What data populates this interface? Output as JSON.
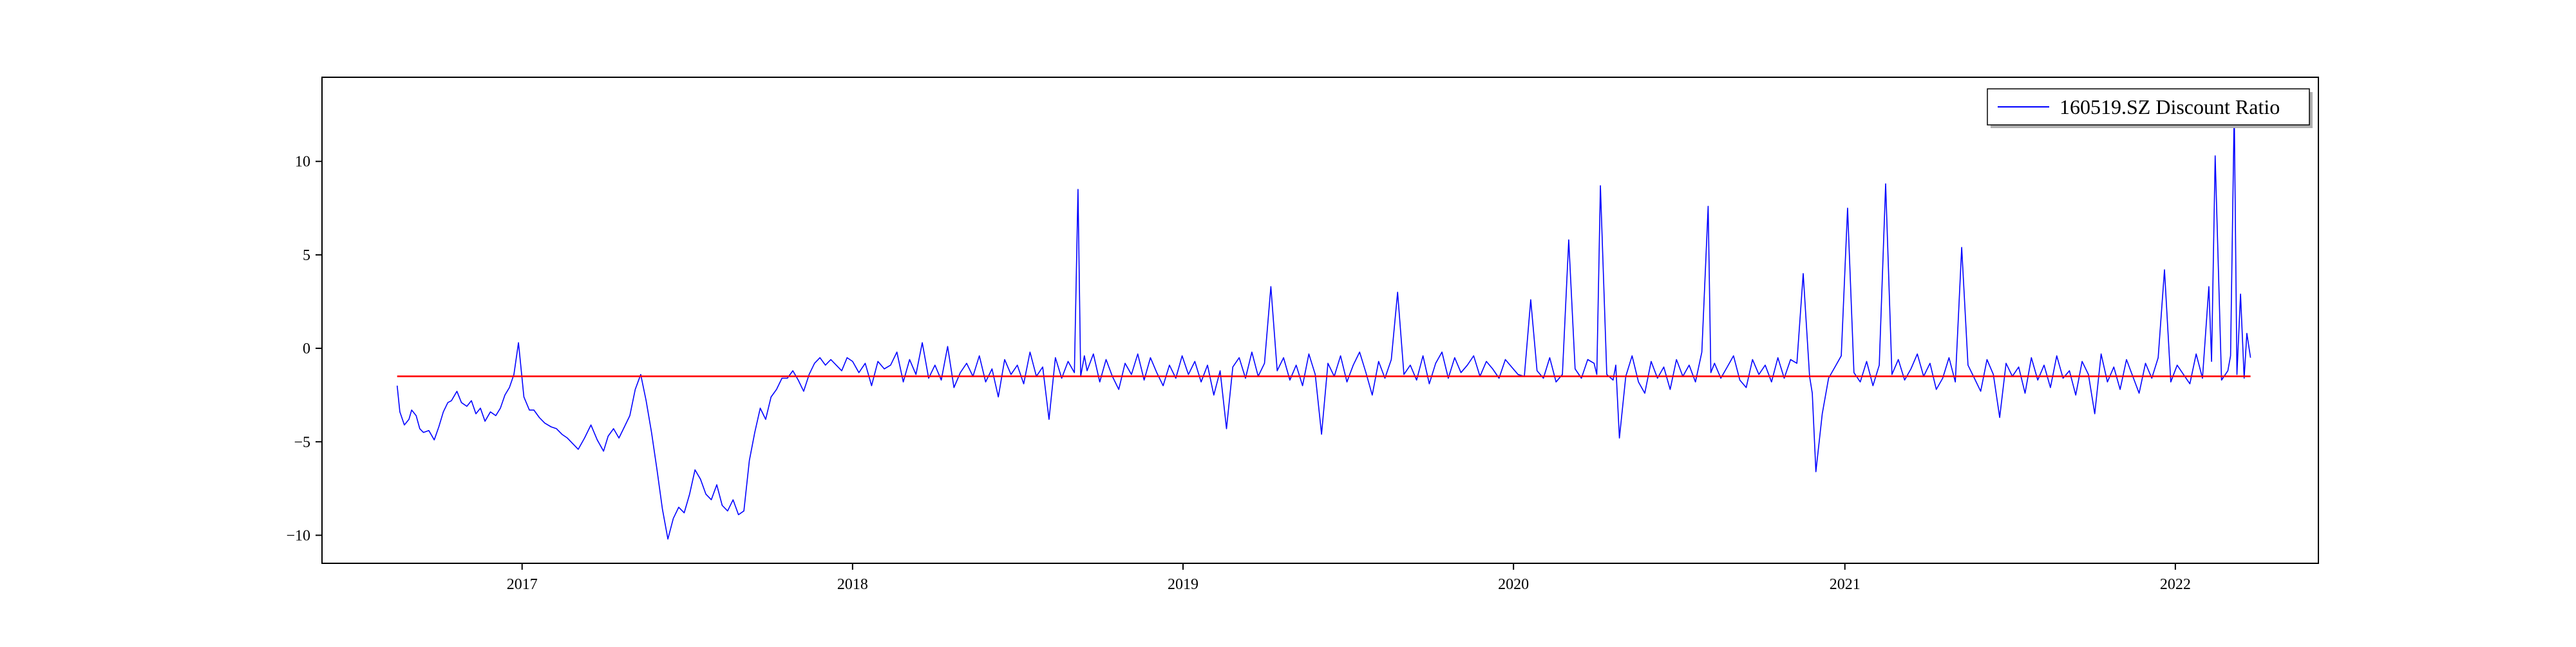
{
  "chart_data": {
    "type": "line",
    "title": "",
    "xlabel": "",
    "ylabel": "",
    "x_range": [
      "2016-05-25",
      "2022-06-08"
    ],
    "ylim": [
      -11.5,
      14.5
    ],
    "x_ticks": [
      {
        "date": "2017-01-01",
        "label": "2017"
      },
      {
        "date": "2018-01-01",
        "label": "2018"
      },
      {
        "date": "2019-01-01",
        "label": "2019"
      },
      {
        "date": "2020-01-01",
        "label": "2020"
      },
      {
        "date": "2021-01-01",
        "label": "2021"
      },
      {
        "date": "2022-01-01",
        "label": "2022"
      }
    ],
    "y_ticks": [
      {
        "value": -10,
        "label": "−10"
      },
      {
        "value": -5,
        "label": "−5"
      },
      {
        "value": 0,
        "label": "0"
      },
      {
        "value": 5,
        "label": "5"
      },
      {
        "value": 10,
        "label": "10"
      }
    ],
    "grid": false,
    "legend": {
      "position": "top-right",
      "entries": [
        "160519.SZ Discount Ratio"
      ]
    },
    "series": [
      {
        "name": "160519.SZ Discount Ratio",
        "color": "#0000ff",
        "x": [
          "2016-08-16",
          "2016-08-19",
          "2016-08-24",
          "2016-08-29",
          "2016-09-01",
          "2016-09-06",
          "2016-09-10",
          "2016-09-14",
          "2016-09-20",
          "2016-09-26",
          "2016-10-01",
          "2016-10-06",
          "2016-10-11",
          "2016-10-15",
          "2016-10-21",
          "2016-10-26",
          "2016-11-01",
          "2016-11-06",
          "2016-11-11",
          "2016-11-16",
          "2016-11-21",
          "2016-11-27",
          "2016-12-03",
          "2016-12-08",
          "2016-12-13",
          "2016-12-18",
          "2016-12-23",
          "2016-12-28",
          "2017-01-03",
          "2017-01-09",
          "2017-01-14",
          "2017-01-20",
          "2017-01-26",
          "2017-02-02",
          "2017-02-08",
          "2017-02-14",
          "2017-02-20",
          "2017-02-26",
          "2017-03-04",
          "2017-03-11",
          "2017-03-18",
          "2017-03-25",
          "2017-04-01",
          "2017-04-06",
          "2017-04-12",
          "2017-04-18",
          "2017-04-24",
          "2017-04-30",
          "2017-05-06",
          "2017-05-12",
          "2017-05-18",
          "2017-05-24",
          "2017-05-30",
          "2017-06-05",
          "2017-06-11",
          "2017-06-17",
          "2017-06-23",
          "2017-06-29",
          "2017-07-05",
          "2017-07-11",
          "2017-07-17",
          "2017-07-23",
          "2017-07-29",
          "2017-08-04",
          "2017-08-10",
          "2017-08-16",
          "2017-08-22",
          "2017-08-28",
          "2017-09-03",
          "2017-09-09",
          "2017-09-15",
          "2017-09-21",
          "2017-09-27",
          "2017-10-03",
          "2017-10-09",
          "2017-10-15",
          "2017-10-21",
          "2017-10-27",
          "2017-11-02",
          "2017-11-08",
          "2017-11-14",
          "2017-11-20",
          "2017-11-26",
          "2017-12-02",
          "2017-12-08",
          "2017-12-14",
          "2017-12-20",
          "2017-12-26",
          "2018-01-01",
          "2018-01-08",
          "2018-01-15",
          "2018-01-22",
          "2018-01-29",
          "2018-02-05",
          "2018-02-12",
          "2018-02-19",
          "2018-02-26",
          "2018-03-05",
          "2018-03-12",
          "2018-03-19",
          "2018-03-26",
          "2018-04-02",
          "2018-04-09",
          "2018-04-16",
          "2018-04-23",
          "2018-04-30",
          "2018-05-07",
          "2018-05-14",
          "2018-05-21",
          "2018-05-28",
          "2018-06-04",
          "2018-06-11",
          "2018-06-18",
          "2018-06-25",
          "2018-07-02",
          "2018-07-09",
          "2018-07-16",
          "2018-07-23",
          "2018-07-30",
          "2018-08-06",
          "2018-08-13",
          "2018-08-20",
          "2018-08-27",
          "2018-09-03",
          "2018-09-07",
          "2018-09-10",
          "2018-09-14",
          "2018-09-17",
          "2018-09-24",
          "2018-10-01",
          "2018-10-08",
          "2018-10-15",
          "2018-10-22",
          "2018-10-29",
          "2018-11-05",
          "2018-11-12",
          "2018-11-19",
          "2018-11-26",
          "2018-12-03",
          "2018-12-10",
          "2018-12-17",
          "2018-12-24",
          "2018-12-31",
          "2019-01-07",
          "2019-01-14",
          "2019-01-21",
          "2019-01-28",
          "2019-02-04",
          "2019-02-11",
          "2019-02-18",
          "2019-02-25",
          "2019-03-04",
          "2019-03-11",
          "2019-03-18",
          "2019-03-25",
          "2019-04-01",
          "2019-04-08",
          "2019-04-15",
          "2019-04-22",
          "2019-04-29",
          "2019-05-06",
          "2019-05-13",
          "2019-05-20",
          "2019-05-27",
          "2019-06-03",
          "2019-06-10",
          "2019-06-17",
          "2019-06-24",
          "2019-07-01",
          "2019-07-08",
          "2019-07-15",
          "2019-07-22",
          "2019-07-29",
          "2019-08-05",
          "2019-08-12",
          "2019-08-19",
          "2019-08-26",
          "2019-09-02",
          "2019-09-09",
          "2019-09-16",
          "2019-09-23",
          "2019-09-30",
          "2019-10-07",
          "2019-10-14",
          "2019-10-21",
          "2019-10-28",
          "2019-11-04",
          "2019-11-11",
          "2019-11-18",
          "2019-11-25",
          "2019-12-02",
          "2019-12-09",
          "2019-12-16",
          "2019-12-23",
          "2019-12-30",
          "2020-01-06",
          "2020-01-13",
          "2020-01-20",
          "2020-01-27",
          "2020-02-03",
          "2020-02-10",
          "2020-02-17",
          "2020-02-24",
          "2020-03-02",
          "2020-03-09",
          "2020-03-16",
          "2020-03-23",
          "2020-03-30",
          "2020-04-02",
          "2020-04-06",
          "2020-04-13",
          "2020-04-20",
          "2020-04-23",
          "2020-04-27",
          "2020-05-04",
          "2020-05-11",
          "2020-05-18",
          "2020-05-25",
          "2020-06-01",
          "2020-06-08",
          "2020-06-15",
          "2020-06-22",
          "2020-06-29",
          "2020-07-06",
          "2020-07-13",
          "2020-07-20",
          "2020-07-27",
          "2020-08-03",
          "2020-08-06",
          "2020-08-10",
          "2020-08-17",
          "2020-08-24",
          "2020-08-31",
          "2020-09-07",
          "2020-09-14",
          "2020-09-21",
          "2020-09-28",
          "2020-10-05",
          "2020-10-12",
          "2020-10-19",
          "2020-10-26",
          "2020-11-02",
          "2020-11-09",
          "2020-11-16",
          "2020-11-23",
          "2020-11-26",
          "2020-11-30",
          "2020-12-07",
          "2020-12-14",
          "2020-12-21",
          "2020-12-28",
          "2021-01-04",
          "2021-01-11",
          "2021-01-18",
          "2021-01-25",
          "2021-02-01",
          "2021-02-08",
          "2021-02-15",
          "2021-02-22",
          "2021-03-01",
          "2021-03-08",
          "2021-03-15",
          "2021-03-22",
          "2021-03-29",
          "2021-04-05",
          "2021-04-12",
          "2021-04-19",
          "2021-04-26",
          "2021-05-03",
          "2021-05-10",
          "2021-05-17",
          "2021-05-24",
          "2021-05-31",
          "2021-06-07",
          "2021-06-14",
          "2021-06-21",
          "2021-06-28",
          "2021-07-05",
          "2021-07-12",
          "2021-07-19",
          "2021-07-26",
          "2021-08-02",
          "2021-08-09",
          "2021-08-16",
          "2021-08-23",
          "2021-08-30",
          "2021-09-06",
          "2021-09-13",
          "2021-09-20",
          "2021-09-27",
          "2021-10-04",
          "2021-10-11",
          "2021-10-18",
          "2021-10-25",
          "2021-11-01",
          "2021-11-08",
          "2021-11-15",
          "2021-11-22",
          "2021-11-29",
          "2021-12-06",
          "2021-12-13",
          "2021-12-20",
          "2021-12-27",
          "2022-01-03",
          "2022-01-10",
          "2022-01-17",
          "2022-01-24",
          "2022-01-31",
          "2022-02-07",
          "2022-02-10",
          "2022-02-14",
          "2022-02-21",
          "2022-02-28",
          "2022-03-03",
          "2022-03-07",
          "2022-03-10",
          "2022-03-14",
          "2022-03-18",
          "2022-03-21",
          "2022-03-25"
        ],
        "y": [
          -2.0,
          -3.4,
          -4.1,
          -3.8,
          -3.3,
          -3.6,
          -4.3,
          -4.5,
          -4.4,
          -4.9,
          -4.2,
          -3.4,
          -2.9,
          -2.8,
          -2.3,
          -2.9,
          -3.1,
          -2.8,
          -3.5,
          -3.2,
          -3.9,
          -3.4,
          -3.6,
          -3.2,
          -2.5,
          -2.1,
          -1.4,
          0.3,
          -2.6,
          -3.3,
          -3.3,
          -3.7,
          -4.0,
          -4.2,
          -4.3,
          -4.6,
          -4.8,
          -5.1,
          -5.4,
          -4.8,
          -4.1,
          -4.9,
          -5.5,
          -4.7,
          -4.3,
          -4.8,
          -4.2,
          -3.6,
          -2.2,
          -1.4,
          -2.8,
          -4.5,
          -6.5,
          -8.6,
          -10.2,
          -9.1,
          -8.5,
          -8.8,
          -7.8,
          -6.5,
          -7.0,
          -7.8,
          -8.1,
          -7.3,
          -8.4,
          -8.7,
          -8.1,
          -8.9,
          -8.7,
          -6.0,
          -4.5,
          -3.2,
          -3.8,
          -2.6,
          -2.2,
          -1.6,
          -1.6,
          -1.2,
          -1.7,
          -2.3,
          -1.4,
          -0.8,
          -0.5,
          -0.9,
          -0.6,
          -0.9,
          -1.2,
          -0.5,
          -0.7,
          -1.3,
          -0.8,
          -2.0,
          -0.7,
          -1.1,
          -0.9,
          -0.2,
          -1.8,
          -0.6,
          -1.4,
          0.3,
          -1.6,
          -0.9,
          -1.7,
          0.1,
          -2.1,
          -1.3,
          -0.8,
          -1.5,
          -0.4,
          -1.8,
          -1.1,
          -2.6,
          -0.6,
          -1.4,
          -0.9,
          -1.9,
          -0.2,
          -1.5,
          -1.0,
          -3.8,
          -0.5,
          -1.6,
          -0.7,
          -1.3,
          8.5,
          -1.5,
          -0.4,
          -1.2,
          -0.3,
          -1.8,
          -0.6,
          -1.5,
          -2.2,
          -0.8,
          -1.4,
          -0.3,
          -1.7,
          -0.5,
          -1.3,
          -2.0,
          -0.9,
          -1.6,
          -0.4,
          -1.4,
          -0.7,
          -1.8,
          -0.9,
          -2.5,
          -1.2,
          -4.3,
          -1.0,
          -0.5,
          -1.6,
          -0.2,
          -1.5,
          -0.8,
          3.3,
          -1.2,
          -0.5,
          -1.7,
          -0.9,
          -2.0,
          -0.3,
          -1.4,
          -4.6,
          -0.8,
          -1.5,
          -0.4,
          -1.8,
          -0.9,
          -0.2,
          -1.3,
          -2.5,
          -0.7,
          -1.6,
          -0.6,
          3.0,
          -1.4,
          -0.9,
          -1.7,
          -0.4,
          -1.9,
          -0.8,
          -0.2,
          -1.6,
          -0.5,
          -1.3,
          -0.9,
          -0.4,
          -1.5,
          -0.7,
          -1.1,
          -1.6,
          -0.6,
          -1.0,
          -1.4,
          -1.5,
          2.6,
          -1.2,
          -1.6,
          -0.5,
          -1.8,
          -1.4,
          5.8,
          -1.1,
          -1.6,
          -0.6,
          -0.8,
          -1.4,
          8.7,
          -1.4,
          -1.7,
          -0.9,
          -4.8,
          -1.5,
          -0.4,
          -1.8,
          -2.4,
          -0.7,
          -1.6,
          -1.0,
          -2.2,
          -0.6,
          -1.5,
          -0.9,
          -1.8,
          -0.2,
          7.6,
          -1.3,
          -0.8,
          -1.6,
          -1.0,
          -0.4,
          -1.7,
          -2.1,
          -0.6,
          -1.4,
          -0.9,
          -1.8,
          -0.5,
          -1.6,
          -0.6,
          -0.8,
          4.0,
          -1.5,
          -2.4,
          -6.6,
          -3.5,
          -1.6,
          -1.0,
          -0.4,
          7.5,
          -1.3,
          -1.8,
          -0.7,
          -2.0,
          -0.9,
          8.8,
          -1.4,
          -0.6,
          -1.7,
          -1.1,
          -0.3,
          -1.5,
          -0.8,
          -2.2,
          -1.6,
          -0.5,
          -1.8,
          5.4,
          -0.9,
          -1.6,
          -2.3,
          -0.6,
          -1.4,
          -3.7,
          -0.8,
          -1.5,
          -1.0,
          -2.4,
          -0.5,
          -1.7,
          -0.9,
          -2.1,
          -0.4,
          -1.6,
          -1.2,
          -2.5,
          -0.7,
          -1.4,
          -3.5,
          -0.3,
          -1.8,
          -1.0,
          -2.2,
          -0.6,
          -1.5,
          -2.4,
          -0.8,
          -1.6,
          -0.5,
          4.2,
          -1.8,
          -0.9,
          -1.4,
          -1.9,
          -0.3,
          -1.6,
          3.3,
          -0.7,
          10.3,
          -1.7,
          -1.2,
          -0.4,
          12.8,
          -1.4,
          2.9,
          -1.6,
          0.8,
          -0.5
        ]
      },
      {
        "name": "",
        "color": "#ff0000",
        "x": [
          "2016-08-16",
          "2022-03-25"
        ],
        "y": [
          -1.5,
          -1.5
        ]
      }
    ]
  }
}
